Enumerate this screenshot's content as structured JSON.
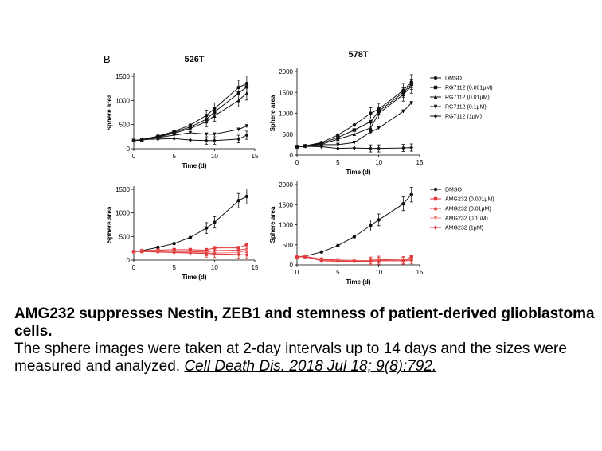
{
  "figure": {
    "panel_letter": "B"
  },
  "legend_groups": [
    {
      "items": [
        {
          "label": "DMSO",
          "marker": "circle"
        },
        {
          "label": "RG7112 (0.001μM)",
          "marker": "square"
        },
        {
          "label": "RG7112 (0.01μM)",
          "marker": "triangle-up"
        },
        {
          "label": "RG7112 (0.1μM)",
          "marker": "triangle-down"
        },
        {
          "label": "RG7112 (1μM)",
          "marker": "diamond"
        }
      ]
    },
    {
      "items": [
        {
          "label": "DMSO",
          "marker": "circle"
        },
        {
          "label": "AMG232 (0.001μM)",
          "marker": "square"
        },
        {
          "label": "AMG232 (0.01μM)",
          "marker": "triangle-up"
        },
        {
          "label": "AMG232 (0.1μM)",
          "marker": "triangle-down"
        },
        {
          "label": "AMG232 (1μM)",
          "marker": "diamond"
        }
      ]
    }
  ],
  "colors": {
    "black": "#111111",
    "red": "#e0393b",
    "red_light": "#f08080"
  },
  "chart_data": [
    {
      "type": "line",
      "title": "526T",
      "xlabel": "Time (d)",
      "ylabel": "Sphere area",
      "xlim": [
        0,
        15
      ],
      "ylim": [
        0,
        1500
      ],
      "xticks": [
        0,
        5,
        10,
        15
      ],
      "yticks": [
        0,
        500,
        1000,
        1500
      ],
      "x": [
        0,
        1,
        3,
        5,
        7,
        9,
        10,
        13,
        14
      ],
      "series": [
        {
          "name": "DMSO",
          "values": [
            170,
            190,
            260,
            360,
            490,
            690,
            830,
            1270,
            1350
          ]
        },
        {
          "name": "RG7112 (0.001μM)",
          "values": [
            170,
            185,
            250,
            340,
            450,
            610,
            760,
            1150,
            1280
          ]
        },
        {
          "name": "RG7112 (0.01μM)",
          "values": [
            170,
            180,
            240,
            320,
            420,
            560,
            680,
            1000,
            1150
          ]
        },
        {
          "name": "RG7112 (0.1μM)",
          "values": [
            170,
            180,
            230,
            280,
            330,
            300,
            300,
            400,
            470
          ]
        },
        {
          "name": "RG7112 (1μM)",
          "values": [
            170,
            190,
            200,
            210,
            180,
            170,
            170,
            200,
            280
          ]
        }
      ]
    },
    {
      "type": "line",
      "title": "578T",
      "xlabel": "Time (d)",
      "ylabel": "Sphere area",
      "xlim": [
        0,
        15
      ],
      "ylim": [
        0,
        2000
      ],
      "xticks": [
        0,
        5,
        10,
        15
      ],
      "yticks": [
        0,
        500,
        1000,
        1500,
        2000
      ],
      "x": [
        0,
        1,
        3,
        5,
        7,
        9,
        10,
        13,
        14
      ],
      "series": [
        {
          "name": "DMSO",
          "values": [
            200,
            220,
            300,
            480,
            720,
            1000,
            1100,
            1550,
            1750
          ]
        },
        {
          "name": "RG7112 (0.001μM)",
          "values": [
            200,
            220,
            280,
            420,
            600,
            800,
            1050,
            1500,
            1700
          ]
        },
        {
          "name": "RG7112 (0.01μM)",
          "values": [
            200,
            220,
            260,
            380,
            500,
            650,
            1000,
            1450,
            1650
          ]
        },
        {
          "name": "RG7112 (0.1μM)",
          "values": [
            200,
            210,
            250,
            250,
            300,
            550,
            650,
            1050,
            1250
          ]
        },
        {
          "name": "RG7112 (1μM)",
          "values": [
            200,
            210,
            200,
            160,
            170,
            160,
            160,
            170,
            180
          ]
        }
      ]
    },
    {
      "type": "line",
      "title": "",
      "xlabel": "Time (d)",
      "ylabel": "Sphere area",
      "xlim": [
        0,
        15
      ],
      "ylim": [
        0,
        1500
      ],
      "xticks": [
        0,
        5,
        10,
        15
      ],
      "yticks": [
        0,
        500,
        1000,
        1500
      ],
      "x": [
        0,
        1,
        3,
        5,
        7,
        9,
        10,
        13,
        14
      ],
      "series": [
        {
          "name": "DMSO",
          "values": [
            180,
            200,
            270,
            350,
            480,
            680,
            800,
            1260,
            1350
          ]
        },
        {
          "name": "AMG232 (0.001μM)",
          "values": [
            180,
            200,
            210,
            220,
            220,
            210,
            260,
            260,
            330
          ]
        },
        {
          "name": "AMG232 (0.01μM)",
          "values": [
            180,
            190,
            200,
            190,
            180,
            170,
            200,
            210,
            240
          ]
        },
        {
          "name": "AMG232 (0.1μM)",
          "values": [
            180,
            190,
            180,
            170,
            160,
            150,
            150,
            160,
            200
          ]
        },
        {
          "name": "AMG232 (1μM)",
          "values": [
            180,
            180,
            170,
            160,
            150,
            140,
            130,
            120,
            110
          ]
        }
      ]
    },
    {
      "type": "line",
      "title": "",
      "xlabel": "Time (d)",
      "ylabel": "Sphere area",
      "xlim": [
        0,
        15
      ],
      "ylim": [
        0,
        2000
      ],
      "xticks": [
        0,
        5,
        10,
        15
      ],
      "yticks": [
        0,
        500,
        1000,
        1500,
        2000
      ],
      "x": [
        0,
        1,
        3,
        5,
        7,
        9,
        10,
        13,
        14
      ],
      "series": [
        {
          "name": "DMSO",
          "values": [
            200,
            220,
            320,
            480,
            700,
            980,
            1120,
            1520,
            1750
          ]
        },
        {
          "name": "AMG232 (0.001μM)",
          "values": [
            200,
            210,
            140,
            120,
            110,
            100,
            120,
            110,
            200
          ]
        },
        {
          "name": "AMG232 (0.01μM)",
          "values": [
            200,
            210,
            120,
            110,
            100,
            110,
            130,
            120,
            160
          ]
        },
        {
          "name": "AMG232 (0.1μM)",
          "values": [
            200,
            200,
            110,
            100,
            100,
            100,
            110,
            110,
            130
          ]
        },
        {
          "name": "AMG232 (1μM)",
          "values": [
            200,
            200,
            100,
            90,
            90,
            90,
            100,
            100,
            110
          ]
        }
      ]
    }
  ],
  "caption": {
    "title": "AMG232 suppresses Nestin, ZEB1 and stemness of patient-derived glioblastoma cells.",
    "body": "The sphere images were taken at 2-day intervals up to 14 days and the sizes were measured and analyzed. ",
    "citation": "Cell Death Dis. 2018 Jul 18; 9(8):792."
  }
}
